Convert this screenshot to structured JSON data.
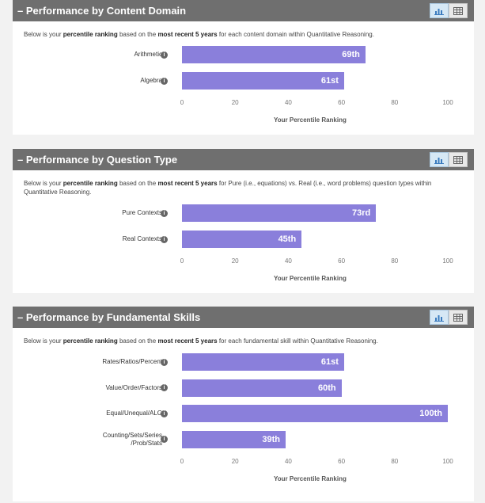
{
  "sections": [
    {
      "title": "Performance by Content Domain",
      "description": [
        "Below is your ",
        "percentile ranking",
        " based on the ",
        "most recent 5 years",
        " for each content domain within Quantitative Reasoning."
      ],
      "chart_data": {
        "type": "bar",
        "orientation": "horizontal",
        "categories": [
          "Arithmetic",
          "Algebra"
        ],
        "values": [
          69,
          61
        ],
        "value_labels": [
          "69th",
          "61st"
        ],
        "xlabel": "Your Percentile Ranking",
        "xlim": [
          0,
          100
        ],
        "ticks": [
          "0",
          "20",
          "40",
          "60",
          "80",
          "100"
        ],
        "bar_color": "#8a7fdb"
      }
    },
    {
      "title": "Performance by Question Type",
      "description": [
        "Below is your ",
        "percentile ranking",
        " based on the ",
        "most recent 5 years",
        " for Pure (i.e., equations) vs. Real (i.e., word problems) question types within Quantitative Reasoning."
      ],
      "chart_data": {
        "type": "bar",
        "orientation": "horizontal",
        "categories": [
          "Pure Contexts",
          "Real Contexts"
        ],
        "values": [
          73,
          45
        ],
        "value_labels": [
          "73rd",
          "45th"
        ],
        "xlabel": "Your Percentile Ranking",
        "xlim": [
          0,
          100
        ],
        "ticks": [
          "0",
          "20",
          "40",
          "60",
          "80",
          "100"
        ],
        "bar_color": "#8a7fdb"
      }
    },
    {
      "title": "Performance by Fundamental Skills",
      "description": [
        "Below is your ",
        "percentile ranking",
        " based on the ",
        "most recent 5 years",
        " for each fundamental skill within Quantitative Reasoning."
      ],
      "chart_data": {
        "type": "bar",
        "orientation": "horizontal",
        "categories": [
          "Rates/Ratios/Percent",
          "Value/Order/Factors",
          "Equal/Unequal/ALG",
          "Counting/Sets/Series\n/Prob/Stats"
        ],
        "values": [
          61,
          60,
          100,
          39
        ],
        "value_labels": [
          "61st",
          "60th",
          "100th",
          "39th"
        ],
        "xlabel": "Your Percentile Ranking",
        "xlim": [
          0,
          100
        ],
        "ticks": [
          "0",
          "20",
          "40",
          "60",
          "80",
          "100"
        ],
        "bar_color": "#8a7fdb"
      }
    }
  ],
  "toggle": {
    "chart_icon": "bar-chart-icon",
    "table_icon": "table-icon"
  },
  "collapse_symbol": "–",
  "info_symbol": "i"
}
